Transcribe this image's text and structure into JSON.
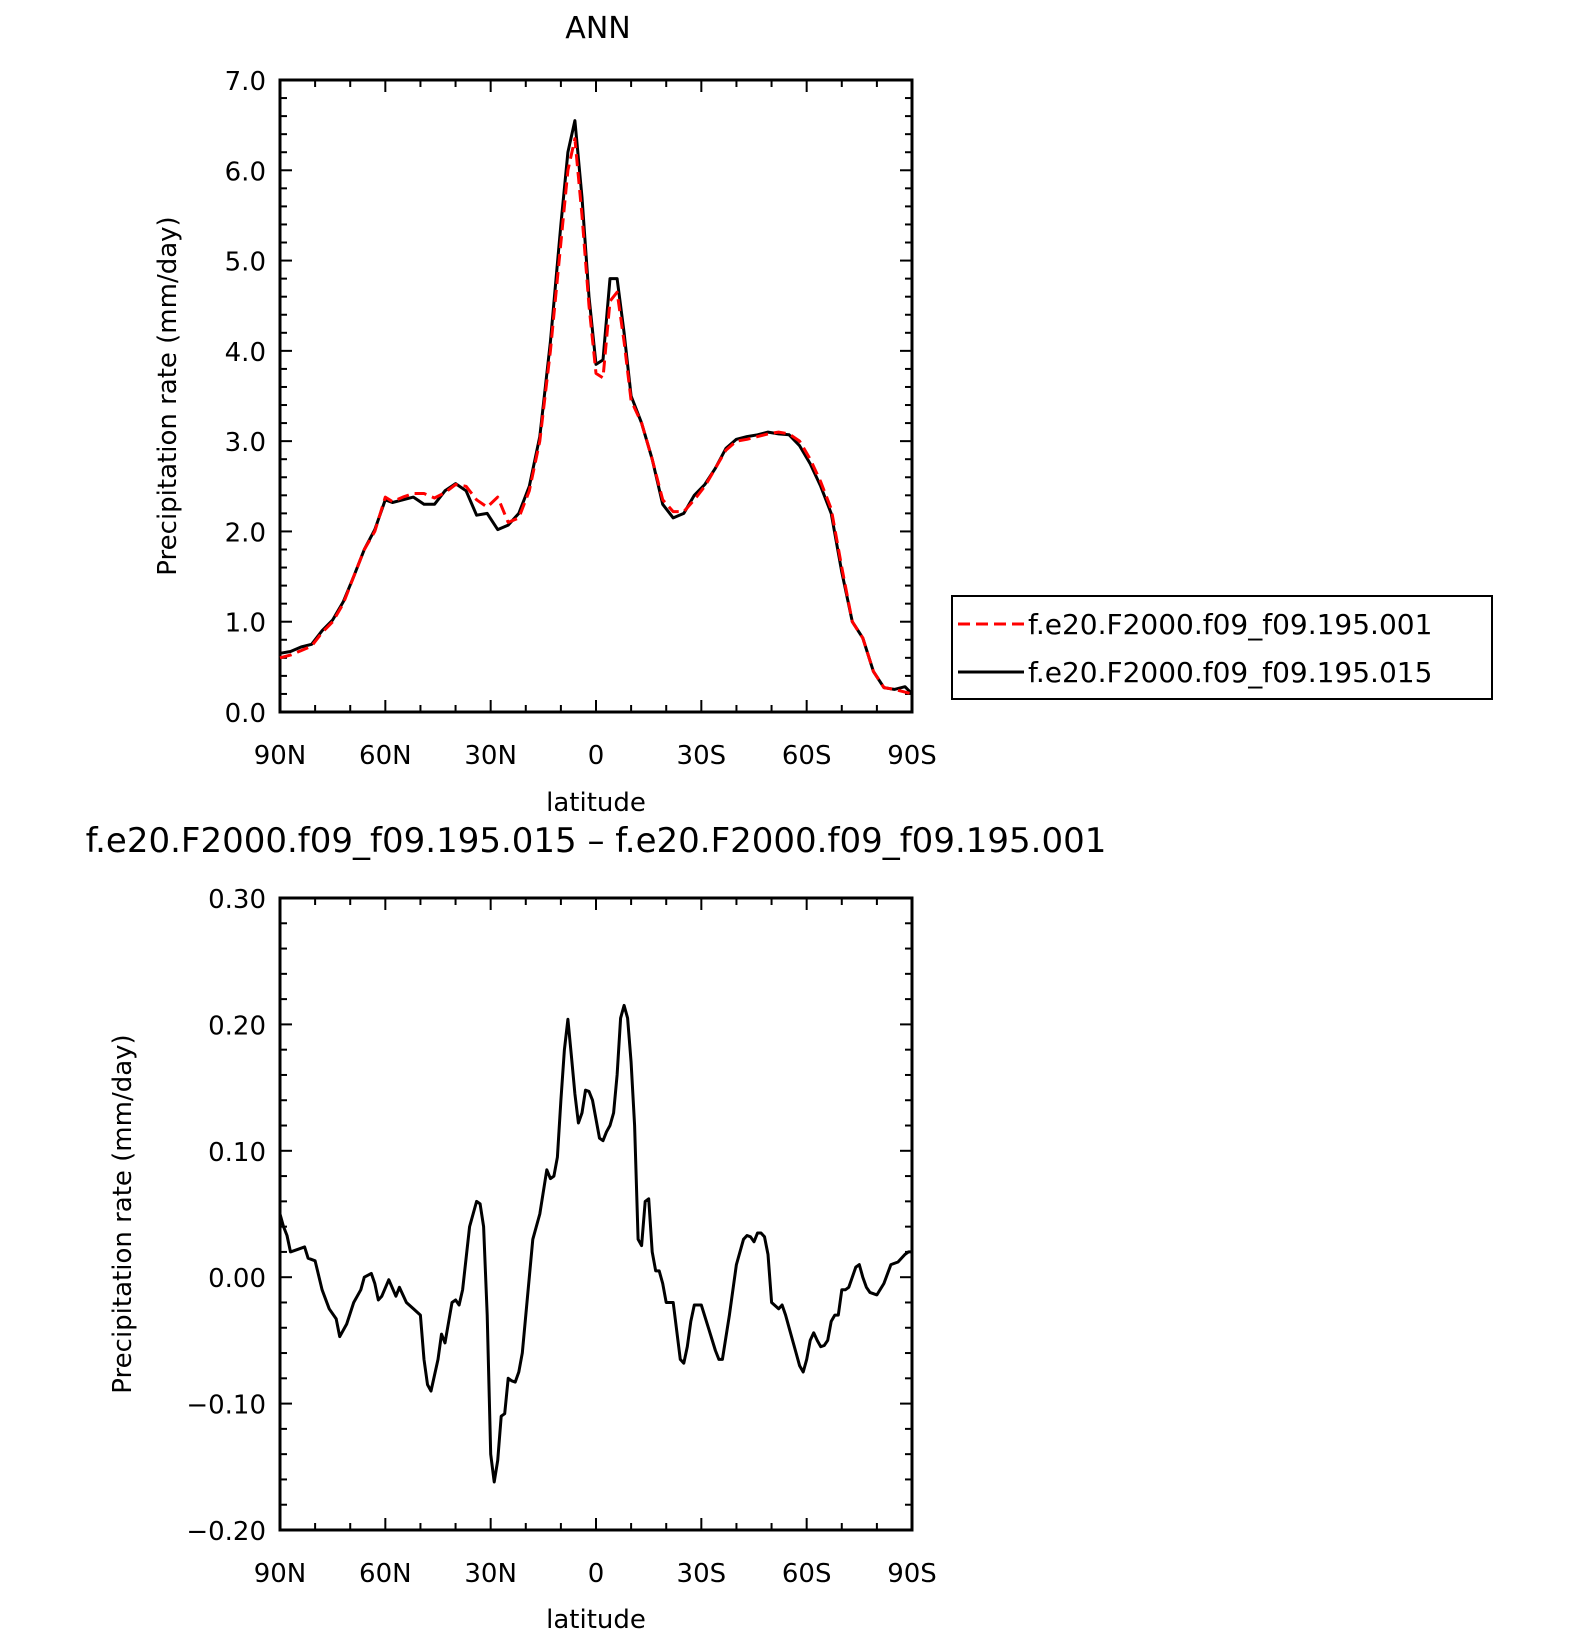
{
  "chart_data": [
    {
      "type": "line",
      "title": "ANN",
      "xlabel": "latitude",
      "ylabel": "Precipitation rate (mm/day)",
      "xlim": [
        90,
        -90
      ],
      "ylim": [
        0.0,
        7.0
      ],
      "xticks": [
        90,
        60,
        30,
        0,
        -30,
        -60,
        -90
      ],
      "xtick_labels": [
        "90N",
        "60N",
        "30N",
        "0",
        "30S",
        "60S",
        "90S"
      ],
      "yticks": [
        0,
        1,
        2,
        3,
        4,
        5,
        6,
        7
      ],
      "ytick_labels": [
        "0.0",
        "1.0",
        "2.0",
        "3.0",
        "4.0",
        "5.0",
        "6.0",
        "7.0"
      ],
      "legend_position": "right",
      "series": [
        {
          "name": "f.e20.F2000.f09_f09.195.001",
          "color": "#ff0000",
          "dash": "dashed",
          "x": [
            90,
            87,
            84,
            81,
            78,
            75,
            72,
            69,
            66,
            63,
            60,
            58,
            55,
            52,
            49,
            46,
            43,
            40,
            37,
            34,
            31,
            28,
            25,
            22,
            19,
            16,
            13,
            10,
            8,
            6,
            4,
            2,
            0,
            -2,
            -4,
            -6,
            -8,
            -10,
            -13,
            -16,
            -19,
            -22,
            -25,
            -28,
            -31,
            -34,
            -37,
            -40,
            -43,
            -46,
            -49,
            -52,
            -55,
            -58,
            -61,
            -64,
            -67,
            -70,
            -73,
            -76,
            -79,
            -82,
            -85,
            -88,
            -90
          ],
          "y": [
            0.6,
            0.63,
            0.68,
            0.73,
            0.88,
            1.0,
            1.2,
            1.5,
            1.8,
            2.0,
            2.38,
            2.33,
            2.38,
            2.42,
            2.42,
            2.37,
            2.43,
            2.52,
            2.5,
            2.35,
            2.27,
            2.38,
            2.1,
            2.15,
            2.45,
            3.0,
            4.0,
            5.2,
            6.0,
            6.35,
            5.5,
            4.5,
            3.75,
            3.7,
            4.55,
            4.65,
            4.1,
            3.45,
            3.2,
            2.8,
            2.35,
            2.22,
            2.22,
            2.35,
            2.5,
            2.7,
            2.9,
            3.0,
            3.02,
            3.05,
            3.08,
            3.1,
            3.08,
            3.0,
            2.8,
            2.55,
            2.25,
            1.6,
            1.0,
            0.82,
            0.45,
            0.27,
            0.25,
            0.22,
            0.2
          ]
        },
        {
          "name": "f.e20.F2000.f09_f09.195.015",
          "color": "#000000",
          "dash": "solid",
          "x": [
            90,
            87,
            84,
            81,
            78,
            75,
            72,
            69,
            66,
            63,
            60,
            58,
            55,
            52,
            49,
            46,
            43,
            40,
            37,
            34,
            31,
            28,
            25,
            22,
            19,
            16,
            13,
            10,
            8,
            6,
            4,
            2,
            0,
            -2,
            -4,
            -6,
            -8,
            -10,
            -13,
            -16,
            -19,
            -22,
            -25,
            -28,
            -31,
            -34,
            -37,
            -40,
            -43,
            -46,
            -49,
            -52,
            -55,
            -58,
            -61,
            -64,
            -67,
            -70,
            -73,
            -76,
            -79,
            -82,
            -85,
            -88,
            -90
          ],
          "y": [
            0.65,
            0.67,
            0.72,
            0.75,
            0.9,
            1.02,
            1.22,
            1.5,
            1.8,
            2.02,
            2.35,
            2.32,
            2.35,
            2.38,
            2.3,
            2.3,
            2.45,
            2.53,
            2.45,
            2.18,
            2.2,
            2.02,
            2.07,
            2.2,
            2.5,
            3.05,
            4.1,
            5.4,
            6.2,
            6.55,
            5.7,
            4.6,
            3.85,
            3.9,
            4.8,
            4.8,
            4.2,
            3.5,
            3.2,
            2.8,
            2.3,
            2.15,
            2.2,
            2.4,
            2.52,
            2.7,
            2.92,
            3.02,
            3.05,
            3.07,
            3.1,
            3.08,
            3.07,
            2.95,
            2.75,
            2.5,
            2.2,
            1.55,
            1.0,
            0.82,
            0.45,
            0.27,
            0.25,
            0.28,
            0.2
          ]
        }
      ]
    },
    {
      "type": "line",
      "title": "f.e20.F2000.f09_f09.195.015 – f.e20.F2000.f09_f09.195.001",
      "xlabel": "latitude",
      "ylabel": "Precipitation rate (mm/day)",
      "xlim": [
        90,
        -90
      ],
      "ylim": [
        -0.2,
        0.3
      ],
      "xticks": [
        90,
        60,
        30,
        0,
        -30,
        -60,
        -90
      ],
      "xtick_labels": [
        "90N",
        "60N",
        "30N",
        "0",
        "30S",
        "60S",
        "90S"
      ],
      "yticks": [
        -0.2,
        -0.1,
        0.0,
        0.1,
        0.2,
        0.3
      ],
      "ytick_labels": [
        "−0.20",
        "−0.10",
        "0.00",
        "0.10",
        "0.20",
        "0.30"
      ],
      "series": [
        {
          "color": "#000000",
          "dash": "solid",
          "x": [
            90,
            89,
            88,
            87,
            85,
            83,
            82,
            80,
            78,
            76,
            74,
            73,
            71,
            69,
            67,
            66,
            64,
            63,
            62,
            61,
            59,
            57,
            56,
            54,
            52,
            50,
            49,
            48,
            47,
            45,
            44,
            43,
            41,
            40,
            39,
            38,
            36,
            34,
            33,
            32,
            31,
            30,
            29,
            28,
            27,
            26,
            25,
            24,
            23,
            22,
            21,
            20,
            18,
            16,
            14,
            13,
            12,
            11,
            10,
            9,
            8,
            7,
            6,
            5,
            4,
            3,
            2,
            1,
            0,
            -1,
            -2,
            -3,
            -4,
            -5,
            -6,
            -7,
            -8,
            -9,
            -10,
            -11,
            -12,
            -13,
            -14,
            -15,
            -16,
            -17,
            -18,
            -19,
            -20,
            -22,
            -24,
            -25,
            -26,
            -27,
            -28,
            -30,
            -32,
            -34,
            -35,
            -36,
            -38,
            -40,
            -42,
            -43,
            -44,
            -45,
            -46,
            -47,
            -48,
            -49,
            -50,
            -52,
            -53,
            -54,
            -55,
            -57,
            -58,
            -59,
            -60,
            -61,
            -62,
            -63,
            -64,
            -65,
            -66,
            -67,
            -68,
            -69,
            -70,
            -71,
            -72,
            -74,
            -75,
            -76,
            -77,
            -78,
            -80,
            -82,
            -84,
            -86,
            -88,
            -89,
            -90
          ],
          "y": [
            0.05,
            0.04,
            0.033,
            0.02,
            0.022,
            0.024,
            0.015,
            0.013,
            -0.01,
            -0.025,
            -0.033,
            -0.047,
            -0.037,
            -0.02,
            -0.01,
            0.0,
            0.003,
            -0.005,
            -0.018,
            -0.015,
            -0.002,
            -0.015,
            -0.008,
            -0.02,
            -0.025,
            -0.03,
            -0.065,
            -0.085,
            -0.09,
            -0.065,
            -0.045,
            -0.052,
            -0.02,
            -0.018,
            -0.022,
            -0.01,
            0.04,
            0.06,
            0.058,
            0.04,
            -0.03,
            -0.14,
            -0.162,
            -0.145,
            -0.11,
            -0.108,
            -0.08,
            -0.082,
            -0.083,
            -0.075,
            -0.06,
            -0.03,
            0.03,
            0.05,
            0.085,
            0.078,
            0.08,
            0.095,
            0.14,
            0.18,
            0.204,
            0.175,
            0.145,
            0.122,
            0.13,
            0.148,
            0.147,
            0.14,
            0.125,
            0.11,
            0.108,
            0.115,
            0.12,
            0.13,
            0.16,
            0.205,
            0.215,
            0.205,
            0.17,
            0.12,
            0.03,
            0.025,
            0.06,
            0.062,
            0.02,
            0.005,
            0.005,
            -0.005,
            -0.02,
            -0.02,
            -0.065,
            -0.068,
            -0.055,
            -0.035,
            -0.022,
            -0.022,
            -0.04,
            -0.058,
            -0.065,
            -0.065,
            -0.03,
            0.01,
            0.03,
            0.033,
            0.032,
            0.028,
            0.035,
            0.035,
            0.032,
            0.018,
            -0.02,
            -0.025,
            -0.022,
            -0.03,
            -0.04,
            -0.06,
            -0.07,
            -0.075,
            -0.065,
            -0.05,
            -0.044,
            -0.05,
            -0.055,
            -0.054,
            -0.05,
            -0.035,
            -0.03,
            -0.03,
            -0.01,
            -0.01,
            -0.008,
            0.008,
            0.01,
            0.0,
            -0.008,
            -0.012,
            -0.014,
            -0.005,
            0.01,
            0.012,
            0.018,
            0.02,
            0.02
          ]
        }
      ]
    }
  ]
}
